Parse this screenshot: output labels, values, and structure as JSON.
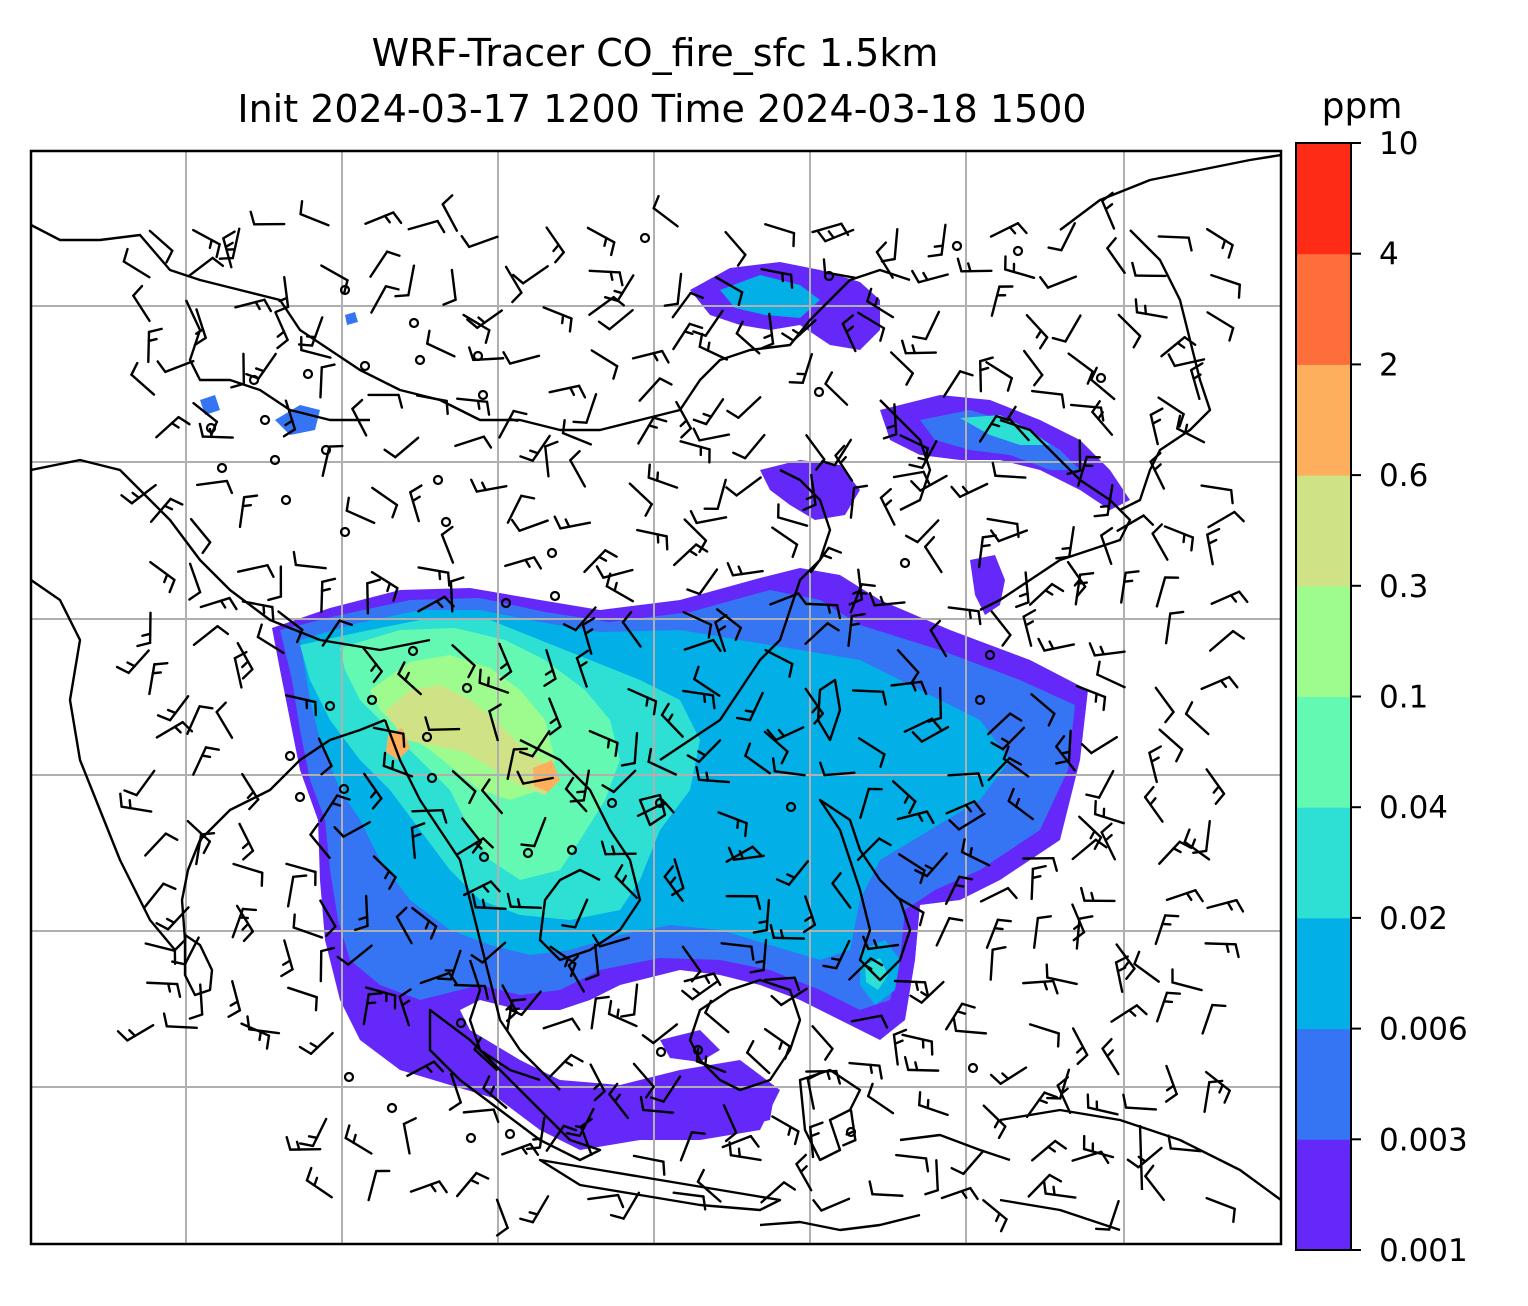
{
  "title_line1": "WRF-Tracer CO_fire_sfc 1.5km",
  "title_line2": "Init 2024-03-17 1200 Time 2024-03-18 1500",
  "colorbar": {
    "unit": "ppm",
    "levels": [
      "0.001",
      "0.003",
      "0.006",
      "0.02",
      "0.04",
      "0.1",
      "0.3",
      "0.6",
      "2",
      "4",
      "10"
    ],
    "colors": [
      "#6428f8",
      "#3574f3",
      "#03afe7",
      "#2ee0d3",
      "#63f9b3",
      "#9efc8f",
      "#cfe285",
      "#feaf5d",
      "#fe6e3a",
      "#fe2b16"
    ]
  },
  "map": {
    "gridlines": true,
    "plume_color_scale": [
      "#6428f8",
      "#3574f3",
      "#03afe7",
      "#2ee0d3",
      "#63f9b3",
      "#9efc8f",
      "#cfe285",
      "#feaf5d"
    ],
    "coastline_color": "#000000",
    "grid_color": "#b0b0b0",
    "barb_color": "#000000"
  }
}
